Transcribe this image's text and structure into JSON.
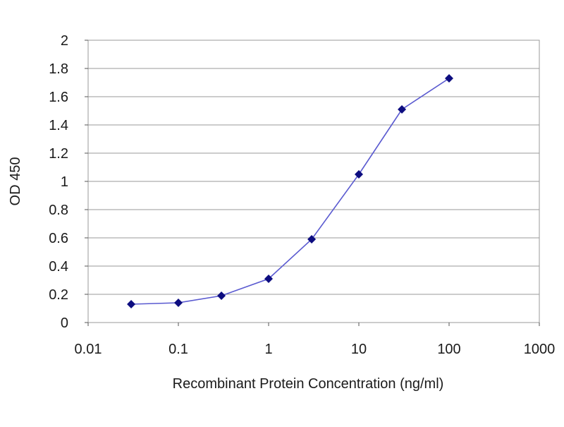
{
  "chart_data": {
    "type": "line",
    "xlabel": "Recombinant Protein Concentration (ng/ml)",
    "ylabel": "OD 450",
    "x_scale": "log",
    "xlim": [
      0.01,
      1000
    ],
    "ylim": [
      0,
      2
    ],
    "x_ticks": [
      0.01,
      0.1,
      1,
      10,
      100,
      1000
    ],
    "x_tick_labels": [
      "0.01",
      "0.1",
      "1",
      "10",
      "100",
      "1000"
    ],
    "y_ticks": [
      0,
      0.2,
      0.4,
      0.6,
      0.8,
      1,
      1.2,
      1.4,
      1.6,
      1.8,
      2
    ],
    "y_tick_labels": [
      "0",
      "0.2",
      "0.4",
      "0.6",
      "0.8",
      "1",
      "1.2",
      "1.4",
      "1.6",
      "1.8",
      "2"
    ],
    "grid": "horizontal",
    "legend": "none",
    "series": [
      {
        "x": [
          0.03,
          0.1,
          0.3,
          1,
          3,
          10,
          30,
          100
        ],
        "y": [
          0.13,
          0.14,
          0.19,
          0.31,
          0.59,
          1.05,
          1.51,
          1.73
        ]
      }
    ],
    "colors": {
      "line": "#5a5ad0",
      "marker": "#0d0d80",
      "grid": "#9a9a9a",
      "frame": "#9a9a9a"
    }
  }
}
